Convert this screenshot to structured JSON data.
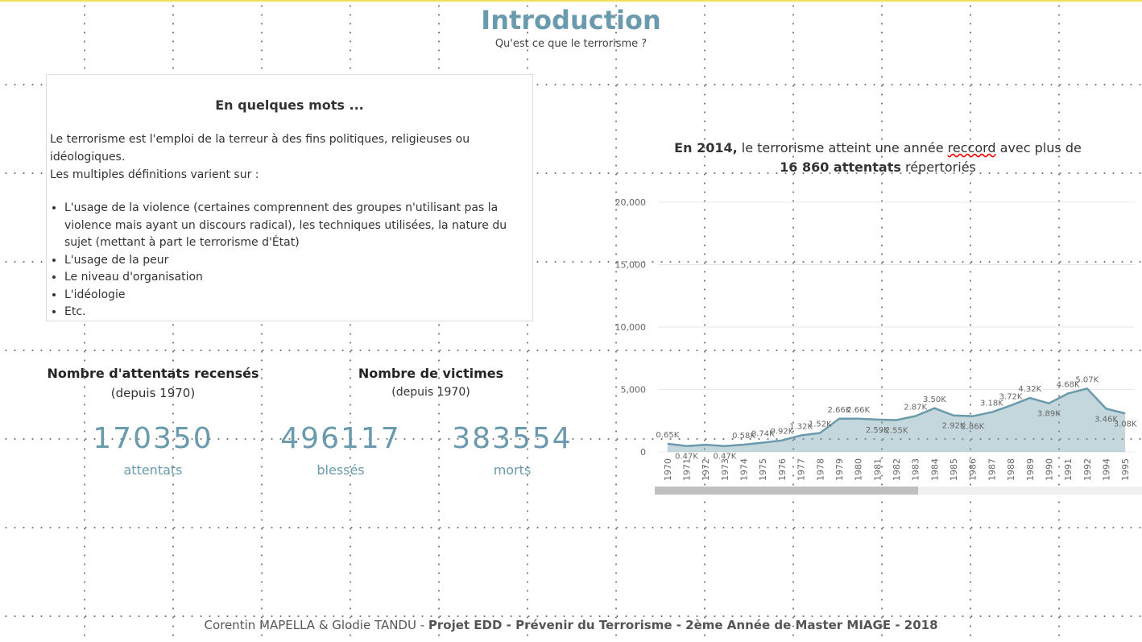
{
  "header": {
    "title": "Introduction",
    "subtitle": "Qu'est ce que le terrorisme ?"
  },
  "card": {
    "title": "En quelques mots ...",
    "intro": [
      "Le terrorisme est l'emploi de la terreur à des fins politiques, religieuses ou idéologiques.",
      "Les multiples définitions varient sur :"
    ],
    "items": [
      "L'usage de la violence (certaines comprennent des groupes n'utilisant pas la violence mais ayant un discours radical), les techniques utilisées, la nature du sujet (mettant à part le terrorisme d'État)",
      "L'usage de la peur",
      "Le niveau d'organisation",
      "L'idéologie",
      "Etc."
    ]
  },
  "kpis": {
    "attacks": {
      "title": "Nombre d'attentats recensés",
      "subtitle": "(depuis 1970)",
      "value": 170350,
      "unit": "attentats"
    },
    "victims": {
      "title": "Nombre de victimes",
      "subtitle": "(depuis 1970)",
      "injured": 496117,
      "injured_unit": "blessés",
      "dead": 383554,
      "dead_unit": "morts"
    }
  },
  "chart_header": [
    "En 2014,",
    " le terrorisme atteint une année ",
    "reccord",
    " avec plus de",
    "16 860 attentats",
    " répertoriés"
  ],
  "footer": [
    "Corentin MAPELLA & Glodie TANDU - ",
    "Projet EDD - Prévenir du Terrorisme - 2ème Année de Master MIAGE - 2018"
  ],
  "chart_data": {
    "type": "area",
    "color": "#6a9aab",
    "grid": true,
    "categories": [
      "1970",
      "1971",
      "1972",
      "1973",
      "1974",
      "1975",
      "1976",
      "1977",
      "1978",
      "1979",
      "1980",
      "1981",
      "1982",
      "1983",
      "1984",
      "1985",
      "1986",
      "1987",
      "1988",
      "1989",
      "1990",
      "1991",
      "1992",
      "1994",
      "1995"
    ],
    "values": [
      650,
      470,
      570,
      470,
      580,
      740,
      920,
      1320,
      1520,
      2660,
      2660,
      2590,
      2550,
      2870,
      3500,
      2920,
      2860,
      3180,
      3720,
      4320,
      3890,
      4680,
      5070,
      3460,
      3080
    ],
    "value_labels": [
      "0.65K",
      "0.47K",
      null,
      "0.47K",
      "0.58K",
      "0.74K",
      "0.92K",
      "1.32K",
      "1.52K",
      "2.66K",
      "2.66K",
      "2.59K",
      "2.55K",
      "2.87K",
      "3.50K",
      "2.92K",
      "2.86K",
      "3.18K",
      "3.72K",
      "4.32K",
      "3.89K",
      "4.68K",
      "5.07K",
      "3.46K",
      "3.08K"
    ],
    "ylim": [
      0,
      20000
    ],
    "yticks": [
      0,
      {
        "value": 5000,
        "label": "5,000"
      },
      {
        "value": 10000,
        "label": "10,000"
      },
      {
        "value": 15000,
        "label": "15,000"
      },
      {
        "value": 20000,
        "label": "20,000"
      }
    ]
  }
}
